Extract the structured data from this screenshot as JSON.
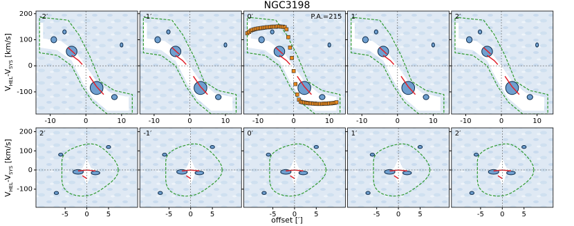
{
  "title": "NGC3198",
  "ylabel": [
    "V",
    "HEL",
    "-V",
    "SYS",
    " [km/s]"
  ],
  "xlabel": "offset [′]",
  "chart_data": [
    {
      "type": "pv",
      "label": "-2′",
      "xlim": [
        -14,
        14.5
      ],
      "ylim": [
        -185,
        210
      ],
      "xticks": [
        -10,
        0,
        10
      ],
      "yticks": [
        -100,
        0,
        100,
        200
      ]
    },
    {
      "type": "pv",
      "label": "-1′",
      "xlim": [
        -14,
        14.5
      ],
      "ylim": [
        -185,
        210
      ],
      "xticks": [
        -10,
        0,
        10
      ],
      "yticks": [
        -100,
        0,
        100,
        200
      ]
    },
    {
      "type": "pv",
      "label": "0′",
      "annotation": "P.A.=215",
      "xlim": [
        -14,
        14.5
      ],
      "ylim": [
        -185,
        210
      ],
      "xticks": [
        -10,
        0,
        10
      ],
      "yticks": [
        -100,
        0,
        100,
        200
      ],
      "points": {
        "color": "#e8891e",
        "x": [
          -13,
          -12.5,
          -12,
          -11.5,
          -11,
          -10.5,
          -10,
          -9.5,
          -9,
          -8.5,
          -8,
          -7.5,
          -7,
          -6.5,
          -6,
          -5.5,
          -5,
          -4.5,
          -4,
          -3.5,
          -3,
          -2.5,
          -2,
          -1.5,
          -1,
          -0.5,
          0,
          0.5,
          1,
          1.5,
          2,
          2.5,
          3,
          3.5,
          4,
          4.5,
          5,
          5.5,
          6,
          6.5,
          7,
          7.5,
          8,
          8.5,
          9,
          9.5,
          10,
          10.5,
          11,
          11.5,
          12
        ],
        "values": [
          125,
          130,
          135,
          138,
          140,
          142,
          143,
          144,
          145,
          146,
          147,
          148,
          148,
          149,
          150,
          150,
          150,
          151,
          151,
          150,
          150,
          148,
          140,
          110,
          70,
          30,
          -20,
          -70,
          -110,
          -130,
          -138,
          -140,
          -141,
          -142,
          -143,
          -144,
          -144,
          -145,
          -145,
          -146,
          -146,
          -146,
          -146,
          -145,
          -145,
          -145,
          -144,
          -144,
          -143,
          -142,
          -140
        ]
      }
    },
    {
      "type": "pv",
      "label": "1′",
      "xlim": [
        -14,
        14.5
      ],
      "ylim": [
        -185,
        210
      ],
      "xticks": [
        -10,
        0,
        10
      ],
      "yticks": [
        -100,
        0,
        100,
        200
      ]
    },
    {
      "type": "pv",
      "label": "2′",
      "xlim": [
        -14,
        14.5
      ],
      "ylim": [
        -185,
        210
      ],
      "xticks": [
        -10,
        0,
        10
      ],
      "yticks": [
        -100,
        0,
        100,
        200
      ]
    },
    {
      "type": "pv",
      "label": "2′",
      "xlim": [
        -11.7,
        11.7
      ],
      "ylim": [
        -195,
        220
      ],
      "xticks": [
        -5,
        0,
        5
      ],
      "yticks": [
        -100,
        0,
        100,
        200
      ]
    },
    {
      "type": "pv",
      "label": "-1′",
      "xlim": [
        -11.7,
        11.7
      ],
      "ylim": [
        -195,
        220
      ],
      "xticks": [
        -5,
        0,
        5
      ],
      "yticks": [
        -100,
        0,
        100,
        200
      ]
    },
    {
      "type": "pv",
      "label": "0′",
      "xlim": [
        -11.7,
        11.7
      ],
      "ylim": [
        -195,
        220
      ],
      "xticks": [
        -5,
        0,
        5
      ],
      "yticks": [
        -100,
        0,
        100,
        200
      ]
    },
    {
      "type": "pv",
      "label": "1′",
      "xlim": [
        -11.7,
        11.7
      ],
      "ylim": [
        -195,
        220
      ],
      "xticks": [
        -5,
        0,
        5
      ],
      "yticks": [
        -100,
        0,
        100,
        200
      ]
    },
    {
      "type": "pv",
      "label": "2′",
      "xlim": [
        -11.7,
        11.7
      ],
      "ylim": [
        -195,
        220
      ],
      "xticks": [
        -5,
        0,
        5
      ],
      "yticks": [
        -100,
        0,
        100,
        200
      ]
    }
  ]
}
